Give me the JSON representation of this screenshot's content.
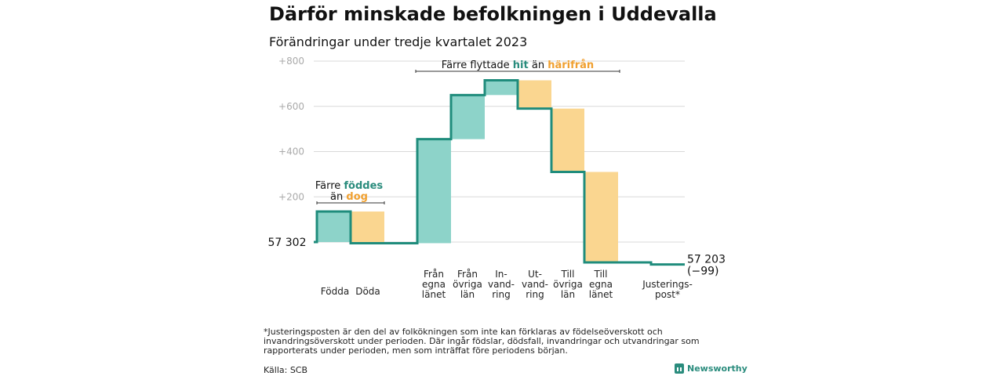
{
  "title": "Därför minskade befolkningen i Uddevalla",
  "subtitle": "Förändringar under tredje kvartalet 2023",
  "chart_data": {
    "type": "waterfall",
    "start_value": 57302,
    "start_label": "57  302",
    "end_label_1": "57 203",
    "end_label_2": "(−99)",
    "y_range_relative": [
      0,
      800
    ],
    "y_ticks": [
      {
        "value": 200,
        "label": "+200"
      },
      {
        "value": 400,
        "label": "+400"
      },
      {
        "value": 600,
        "label": "+600"
      },
      {
        "value": 800,
        "label": "+800"
      }
    ],
    "steps": [
      {
        "label_lines": [
          "Födda"
        ],
        "from": 0,
        "to": 135,
        "kind": "positive"
      },
      {
        "label_lines": [
          "Döda"
        ],
        "from": 135,
        "to": -5,
        "kind": "negative"
      },
      {
        "label_lines": [
          "Från",
          "egna",
          "länet"
        ],
        "from": -5,
        "to": 455,
        "kind": "positive"
      },
      {
        "label_lines": [
          "Från",
          "övriga",
          "län"
        ],
        "from": 455,
        "to": 650,
        "kind": "positive"
      },
      {
        "label_lines": [
          "In-",
          "vand-",
          "ring"
        ],
        "from": 650,
        "to": 715,
        "kind": "positive"
      },
      {
        "label_lines": [
          "Ut-",
          "vand-",
          "ring"
        ],
        "from": 715,
        "to": 590,
        "kind": "negative"
      },
      {
        "label_lines": [
          "Till",
          "övriga",
          "län"
        ],
        "from": 590,
        "to": 310,
        "kind": "negative"
      },
      {
        "label_lines": [
          "Till",
          "egna",
          "länet"
        ],
        "from": 310,
        "to": -90,
        "kind": "negative"
      },
      {
        "label_lines": [
          "Justerings-",
          "post*"
        ],
        "from": -90,
        "to": -99,
        "kind": "adjustment"
      }
    ],
    "annotations": {
      "birth": {
        "prefix": "Färre",
        "highlight1": "föddes",
        "middle": "än",
        "highlight2": "dog"
      },
      "migration": {
        "prefix": "Färre flyttade",
        "highlight1": "hit",
        "middle": "än",
        "highlight2": "härifrån"
      }
    }
  },
  "colors": {
    "positive": "#8dd3c9",
    "negative": "#fad690",
    "line": "#1f8c7c",
    "accent_teal": "#2a8c7d",
    "accent_orange": "#f0a030",
    "grid": "#d9d9d9",
    "tick": "#aaaaaa"
  },
  "footnote": "*Justeringsposten är den del av folkökningen som inte kan förklaras av födelseöverskott och invandringsöverskott under perioden. Där ingår födslar, dödsfall, invandringar och utvandringar som rapporterats under perioden, men som inträffat före periodens början.",
  "source": "Källa: SCB",
  "brand": {
    "name": "Newsworthy",
    "icon": "bar-chart-icon"
  }
}
